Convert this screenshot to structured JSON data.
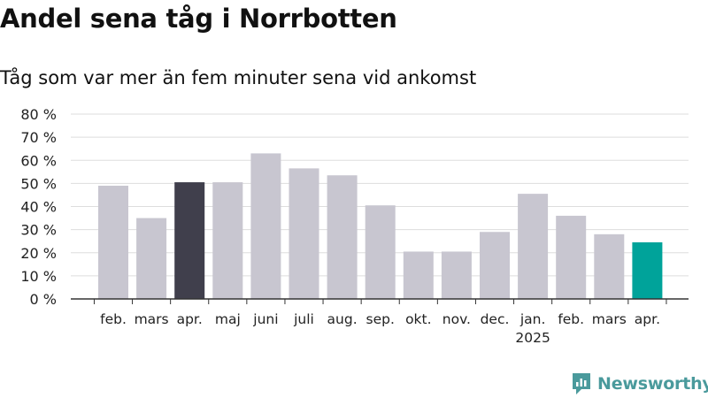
{
  "header": {
    "title": "Andel sena tåg i Norrbotten",
    "subtitle": "Tåg som var mer än fem minuter sena vid ankomst"
  },
  "brand": {
    "name": "Newsworthy",
    "icon": "newsworthy-logo-icon"
  },
  "colors": {
    "default_bar": "#c8c6d0",
    "highlight_previous": "#403f4c",
    "highlight_current": "#00a39a",
    "grid": "#dddddd",
    "axis": "#333333"
  },
  "chart_data": {
    "type": "bar",
    "categories": [
      "feb.",
      "mars",
      "apr.",
      "maj",
      "juni",
      "juli",
      "aug.",
      "sep.",
      "okt.",
      "nov.",
      "dec.",
      "jan.",
      "feb.",
      "mars",
      "apr."
    ],
    "year_labels": [
      {
        "index": 11,
        "label": "2025"
      }
    ],
    "values": [
      49,
      35,
      50.5,
      50.5,
      63,
      56.5,
      53.5,
      40.5,
      20.5,
      20.5,
      29,
      45.5,
      36,
      28,
      24.5
    ],
    "bar_colors": [
      "default",
      "default",
      "highlight_previous",
      "default",
      "default",
      "default",
      "default",
      "default",
      "default",
      "default",
      "default",
      "default",
      "default",
      "default",
      "highlight_current"
    ],
    "ylim": [
      0,
      80
    ],
    "yticks": [
      0,
      10,
      20,
      30,
      40,
      50,
      60,
      70,
      80
    ],
    "ytick_suffix": " %",
    "xlabel": "",
    "ylabel": "",
    "grid": true
  }
}
